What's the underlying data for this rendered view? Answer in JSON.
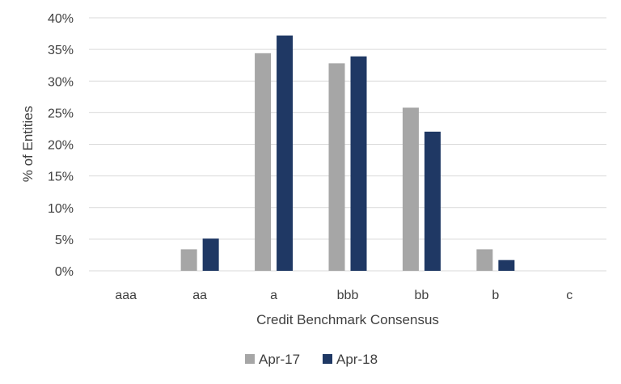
{
  "chart_data": {
    "type": "bar",
    "xlabel": "Credit Benchmark Consensus",
    "ylabel": "% of Entities",
    "categories": [
      "aaa",
      "aa",
      "a",
      "bbb",
      "bb",
      "b",
      "c"
    ],
    "series": [
      {
        "name": "Apr-17",
        "color": "#a6a6a6",
        "values": [
          0,
          3.4,
          34.4,
          32.8,
          25.8,
          3.4,
          0
        ]
      },
      {
        "name": "Apr-18",
        "color": "#1f3864",
        "values": [
          0,
          5.1,
          37.2,
          33.9,
          22.0,
          1.7,
          0
        ]
      }
    ],
    "ylim": [
      0,
      40
    ],
    "yticks": [
      0,
      5,
      10,
      15,
      20,
      25,
      30,
      35,
      40
    ],
    "ytick_format": "percent",
    "grid": "horizontal",
    "legend_position": "bottom"
  }
}
